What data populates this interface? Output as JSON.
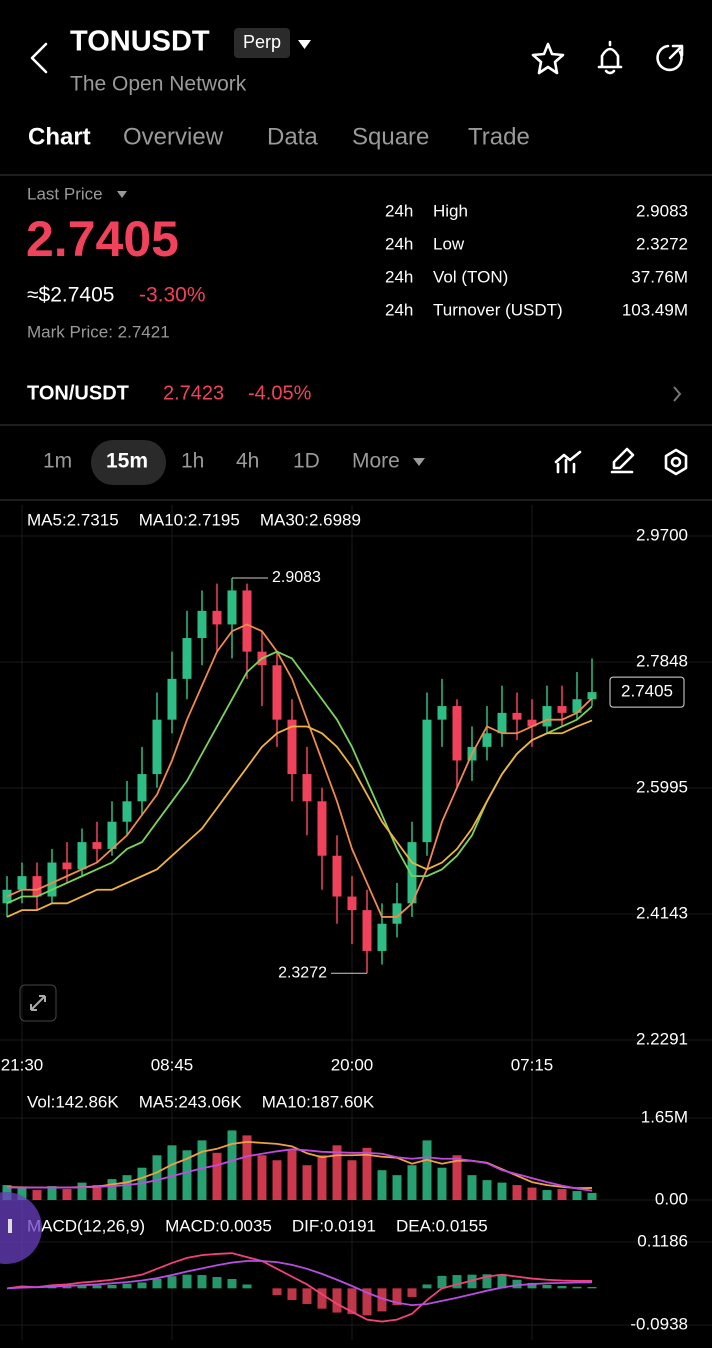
{
  "header": {
    "symbol": "TONUSDT",
    "badge": "Perp",
    "subtitle": "The Open Network"
  },
  "tabs": [
    "Chart",
    "Overview",
    "Data",
    "Square",
    "Trade"
  ],
  "price_panel": {
    "last_price_label": "Last Price",
    "last_price": "2.7405",
    "usd_price": "≈$2.7405",
    "change": "-3.30%",
    "mark_price": "Mark Price: 2.7421",
    "stats": [
      {
        "period": "24h",
        "label": "High",
        "value": "2.9083"
      },
      {
        "period": "24h",
        "label": "Low",
        "value": "2.3272"
      },
      {
        "period": "24h",
        "label": "Vol (TON)",
        "value": "37.76M"
      },
      {
        "period": "24h",
        "label": "Turnover (USDT)",
        "value": "103.49M"
      }
    ]
  },
  "spot_row": {
    "pair": "TON/USDT",
    "price": "2.7423",
    "change": "-4.05%"
  },
  "intervals": [
    "1m",
    "15m",
    "1h",
    "4h",
    "1D",
    "More"
  ],
  "chart_data": [
    {
      "type": "candlestick",
      "up_color": "#2ebd85",
      "down_color": "#f0435b",
      "grid": true,
      "categories": [
        null,
        "21:30",
        null,
        null,
        null,
        null,
        null,
        null,
        null,
        null,
        null,
        "08:45",
        null,
        null,
        null,
        null,
        null,
        null,
        null,
        null,
        null,
        null,
        null,
        "20:00",
        null,
        null,
        null,
        null,
        null,
        null,
        null,
        null,
        null,
        null,
        null,
        "07:15",
        null,
        null,
        null,
        null
      ],
      "open": [
        2.43,
        2.45,
        2.47,
        2.44,
        2.49,
        2.48,
        2.52,
        2.51,
        2.55,
        2.58,
        2.62,
        2.7,
        2.76,
        2.82,
        2.86,
        2.84,
        2.89,
        2.8,
        2.78,
        2.7,
        2.62,
        2.58,
        2.5,
        2.44,
        2.42,
        2.36,
        2.4,
        2.43,
        2.52,
        2.7,
        2.72,
        2.64,
        2.66,
        2.68,
        2.71,
        2.7,
        2.69,
        2.72,
        2.71,
        2.73
      ],
      "high": [
        2.47,
        2.49,
        2.49,
        2.51,
        2.52,
        2.54,
        2.55,
        2.58,
        2.61,
        2.66,
        2.74,
        2.8,
        2.86,
        2.89,
        2.9,
        2.9083,
        2.9,
        2.83,
        2.8,
        2.73,
        2.66,
        2.6,
        2.53,
        2.47,
        2.45,
        2.43,
        2.46,
        2.55,
        2.74,
        2.76,
        2.73,
        2.69,
        2.72,
        2.75,
        2.74,
        2.73,
        2.75,
        2.75,
        2.77,
        2.79
      ],
      "low": [
        2.41,
        2.43,
        2.42,
        2.43,
        2.46,
        2.47,
        2.49,
        2.5,
        2.53,
        2.56,
        2.6,
        2.68,
        2.73,
        2.78,
        2.8,
        2.79,
        2.76,
        2.72,
        2.66,
        2.58,
        2.53,
        2.45,
        2.4,
        2.37,
        2.3272,
        2.34,
        2.38,
        2.41,
        2.5,
        2.66,
        2.6,
        2.61,
        2.64,
        2.66,
        2.67,
        2.66,
        2.68,
        2.69,
        2.7,
        2.72
      ],
      "close": [
        2.45,
        2.47,
        2.44,
        2.49,
        2.48,
        2.52,
        2.51,
        2.55,
        2.58,
        2.62,
        2.7,
        2.76,
        2.82,
        2.86,
        2.84,
        2.89,
        2.8,
        2.78,
        2.7,
        2.62,
        2.58,
        2.5,
        2.44,
        2.42,
        2.36,
        2.4,
        2.43,
        2.52,
        2.7,
        2.72,
        2.64,
        2.66,
        2.68,
        2.71,
        2.7,
        2.69,
        2.72,
        2.71,
        2.73,
        2.7405
      ],
      "series": [
        {
          "name": "MA5:2.7315",
          "color": "#f08a4b",
          "values": [
            2.44,
            2.45,
            2.45,
            2.46,
            2.47,
            2.48,
            2.49,
            2.51,
            2.53,
            2.56,
            2.59,
            2.64,
            2.7,
            2.75,
            2.8,
            2.83,
            2.84,
            2.83,
            2.8,
            2.76,
            2.7,
            2.64,
            2.58,
            2.51,
            2.46,
            2.41,
            2.41,
            2.43,
            2.48,
            2.55,
            2.6,
            2.65,
            2.69,
            2.68,
            2.68,
            2.69,
            2.7,
            2.7,
            2.71,
            2.7315
          ]
        },
        {
          "name": "MA10:2.7195",
          "color": "#7bd35c",
          "values": [
            2.43,
            2.44,
            2.44,
            2.45,
            2.46,
            2.47,
            2.48,
            2.49,
            2.51,
            2.52,
            2.55,
            2.58,
            2.61,
            2.65,
            2.69,
            2.73,
            2.77,
            2.79,
            2.8,
            2.79,
            2.76,
            2.73,
            2.7,
            2.66,
            2.61,
            2.56,
            2.51,
            2.47,
            2.47,
            2.48,
            2.5,
            2.53,
            2.58,
            2.62,
            2.65,
            2.67,
            2.68,
            2.69,
            2.7,
            2.7195
          ]
        },
        {
          "name": "MA30:2.6989",
          "color": "#f0b43c",
          "values": [
            2.41,
            2.42,
            2.42,
            2.43,
            2.43,
            2.44,
            2.45,
            2.45,
            2.46,
            2.47,
            2.48,
            2.5,
            2.52,
            2.54,
            2.57,
            2.6,
            2.63,
            2.66,
            2.68,
            2.69,
            2.69,
            2.68,
            2.66,
            2.63,
            2.59,
            2.55,
            2.52,
            2.49,
            2.48,
            2.49,
            2.51,
            2.54,
            2.58,
            2.62,
            2.65,
            2.67,
            2.68,
            2.68,
            2.69,
            2.6989
          ]
        }
      ],
      "ylim": [
        2.2291,
        2.97
      ],
      "yticks": [
        {
          "value": 2.97,
          "label": "2.9700"
        },
        2.7848,
        2.5995,
        2.4143,
        2.2291
      ],
      "max_label": 2.9083,
      "min_label": 2.3272,
      "price_tag": 2.7405
    },
    {
      "type": "bar",
      "grid": true,
      "values": [
        300000,
        250000,
        200000,
        280000,
        220000,
        350000,
        300000,
        420000,
        500000,
        650000,
        900000,
        1100000,
        1000000,
        1200000,
        950000,
        1400000,
        1300000,
        900000,
        800000,
        1000000,
        700000,
        900000,
        1100000,
        800000,
        1050000,
        600000,
        500000,
        700000,
        1200000,
        650000,
        900000,
        500000,
        400000,
        350000,
        300000,
        250000,
        200000,
        220000,
        180000,
        142860
      ],
      "name": "Vol:142.86K",
      "series": [
        {
          "name": "MA5:243.06K",
          "color": "#f0a040",
          "values": [
            260000,
            255000,
            250000,
            252000,
            250000,
            260000,
            270000,
            314000,
            354000,
            444000,
            554000,
            714000,
            830000,
            970000,
            1030000,
            1130000,
            1170000,
            1150000,
            1130000,
            1080000,
            940000,
            860000,
            900000,
            900000,
            910000,
            870000,
            850000,
            730000,
            810000,
            730000,
            790000,
            790000,
            750000,
            620000,
            490000,
            360000,
            300000,
            264000,
            238000,
            243060
          ]
        },
        {
          "name": "MA10:187.60K",
          "color": "#c04adf",
          "values": [
            250000,
            252000,
            250000,
            250000,
            250000,
            255000,
            262000,
            280000,
            300000,
            337000,
            400000,
            480000,
            560000,
            640000,
            700000,
            790000,
            880000,
            930000,
            980000,
            1020000,
            1000000,
            970000,
            960000,
            950000,
            950000,
            930000,
            860000,
            830000,
            860000,
            830000,
            830000,
            790000,
            740000,
            600000,
            520000,
            440000,
            360000,
            290000,
            230000,
            187600
          ]
        }
      ],
      "ylim": [
        0,
        1650000
      ],
      "yticks": [
        {
          "value": 1650000,
          "label": "1.65M"
        },
        {
          "value": 0,
          "label": "0.00"
        }
      ]
    },
    {
      "type": "macd",
      "title": "MACD(12,26,9)",
      "grid": true,
      "histogram": {
        "name": "MACD:0.0035",
        "color": "#f0a040",
        "values": [
          0,
          0.003,
          0,
          0.004,
          0.004,
          0.007,
          0.008,
          0.009,
          0.012,
          0.015,
          0.024,
          0.031,
          0.035,
          0.034,
          0.029,
          0.024,
          0.01,
          0,
          -0.017,
          -0.03,
          -0.04,
          -0.052,
          -0.062,
          -0.066,
          -0.069,
          -0.059,
          -0.043,
          -0.022,
          0.01,
          0.032,
          0.034,
          0.035,
          0.036,
          0.033,
          0.022,
          0.014,
          0.009,
          0.006,
          0.004,
          0.0035
        ]
      },
      "series": [
        {
          "name": "DIF:0.0191",
          "color": "#f0437a",
          "values": [
            0,
            0.005,
            0.003,
            0.008,
            0.01,
            0.015,
            0.018,
            0.022,
            0.028,
            0.035,
            0.05,
            0.065,
            0.078,
            0.085,
            0.088,
            0.09,
            0.08,
            0.07,
            0.05,
            0.03,
            0.01,
            -0.015,
            -0.04,
            -0.06,
            -0.08,
            -0.085,
            -0.08,
            -0.065,
            -0.03,
            0,
            0.01,
            0.02,
            0.03,
            0.035,
            0.03,
            0.025,
            0.022,
            0.02,
            0.019,
            0.0191
          ]
        },
        {
          "name": "DEA:0.0155",
          "color": "#b84ee0",
          "values": [
            0,
            0.002,
            0.003,
            0.004,
            0.006,
            0.008,
            0.01,
            0.013,
            0.016,
            0.02,
            0.026,
            0.034,
            0.043,
            0.051,
            0.059,
            0.066,
            0.07,
            0.07,
            0.067,
            0.06,
            0.05,
            0.037,
            0.022,
            0.006,
            -0.011,
            -0.026,
            -0.037,
            -0.043,
            -0.04,
            -0.032,
            -0.024,
            -0.015,
            -0.006,
            0.002,
            0.008,
            0.011,
            0.013,
            0.014,
            0.015,
            0.0155
          ]
        }
      ],
      "ylim": [
        -0.0938,
        0.1186
      ],
      "yticks": [
        0.1186,
        -0.0938
      ]
    }
  ]
}
